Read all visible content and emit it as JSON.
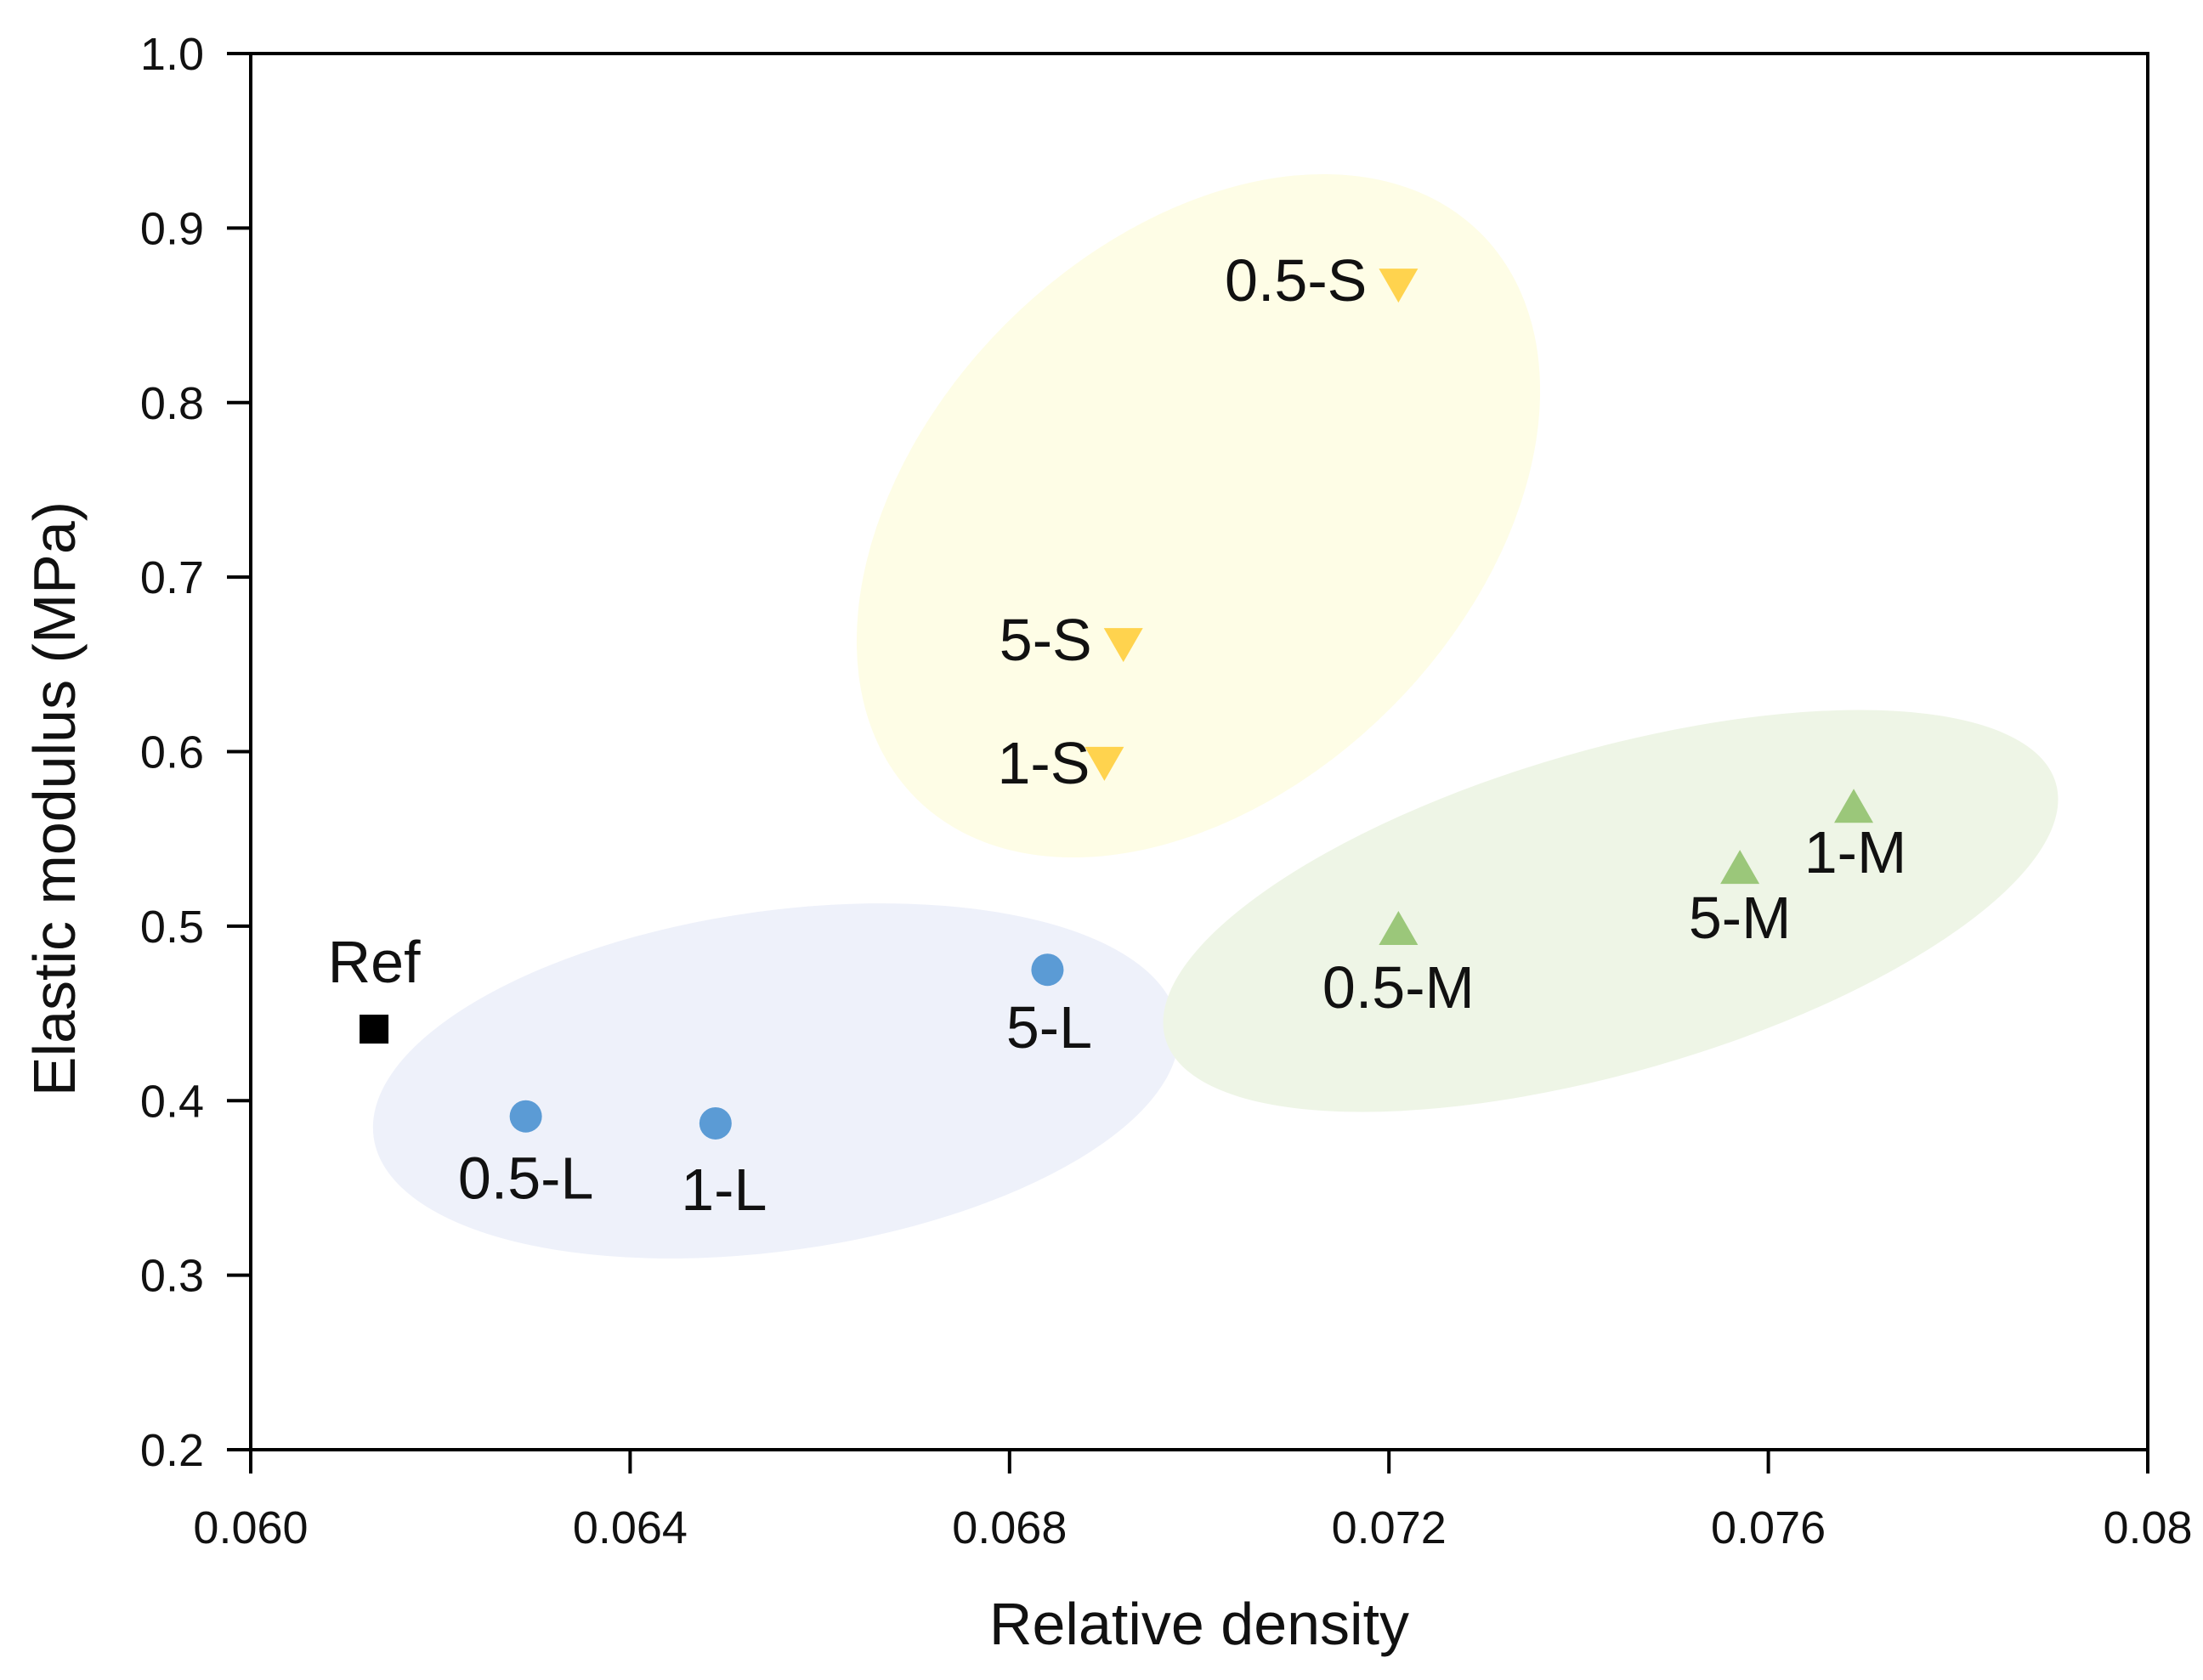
{
  "chart_data": {
    "type": "scatter",
    "xlabel": "Relative density",
    "ylabel": "Elastic modulus (MPa)",
    "xlim": [
      0.06,
      0.08
    ],
    "ylim": [
      0.2,
      1.0
    ],
    "x_ticks": [
      "0.060",
      "0.064",
      "0.068",
      "0.072",
      "0.076",
      "0.08"
    ],
    "y_ticks": [
      "0.2",
      "0.3",
      "0.4",
      "0.5",
      "0.6",
      "0.7",
      "0.8",
      "0.9",
      "1.0"
    ],
    "grid": false,
    "legend": "none",
    "series": [
      {
        "marker": "square",
        "color": "#000000",
        "points": [
          {
            "label": "Ref",
            "x": 0.0613,
            "y": 0.441
          }
        ]
      },
      {
        "marker": "circle",
        "color": "#5b9bd5",
        "points": [
          {
            "label": "0.5-L",
            "x": 0.0629,
            "y": 0.391
          },
          {
            "label": "1-L",
            "x": 0.0649,
            "y": 0.387
          },
          {
            "label": "5-L",
            "x": 0.0684,
            "y": 0.475
          }
        ]
      },
      {
        "marker": "triangle-down",
        "color": "#ffd34e",
        "points": [
          {
            "label": "0.5-S",
            "x": 0.0721,
            "y": 0.868
          },
          {
            "label": "5-S",
            "x": 0.0692,
            "y": 0.662
          },
          {
            "label": "1-S",
            "x": 0.069,
            "y": 0.594
          }
        ]
      },
      {
        "marker": "triangle-up",
        "color": "#9bc77a",
        "points": [
          {
            "label": "0.5-M",
            "x": 0.0721,
            "y": 0.498
          },
          {
            "label": "5-M",
            "x": 0.0757,
            "y": 0.533
          },
          {
            "label": "1-M",
            "x": 0.0769,
            "y": 0.568
          }
        ]
      }
    ],
    "group_regions": [
      {
        "name": "L",
        "color": "#eef1fa"
      },
      {
        "name": "S",
        "color": "#fefde6"
      },
      {
        "name": "M",
        "color": "#eef5e6"
      }
    ]
  }
}
